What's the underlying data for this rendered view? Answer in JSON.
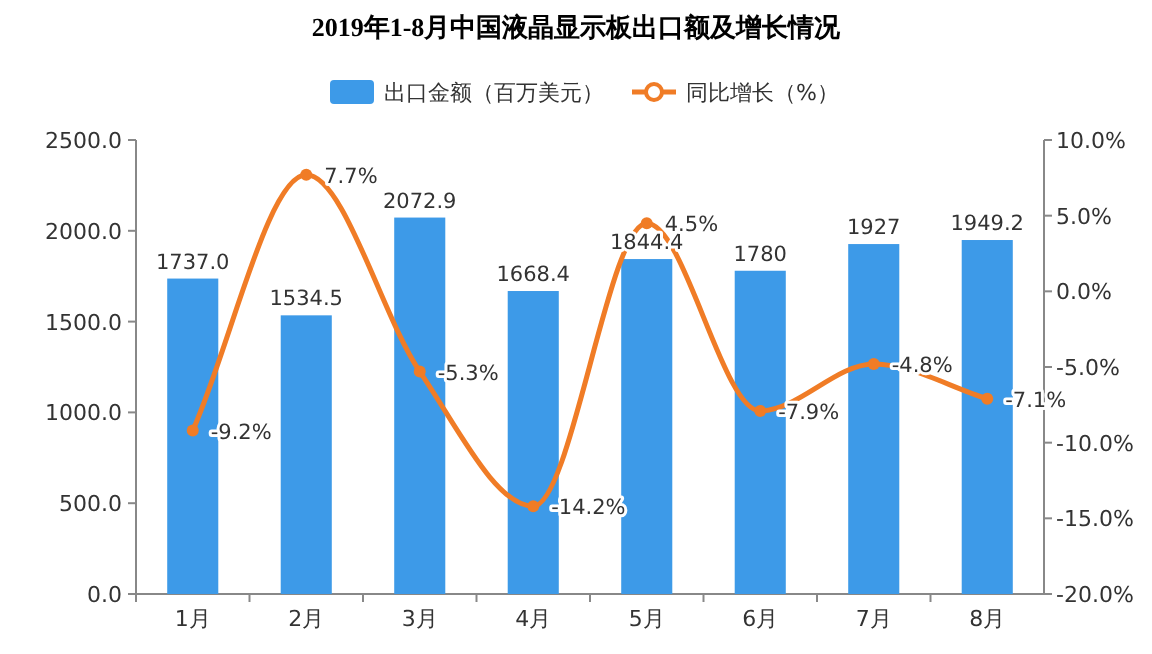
{
  "chart_data": {
    "type": "bar",
    "title": "2019年1-8月中国液晶显示板出口额及增长情况",
    "categories": [
      "1月",
      "2月",
      "3月",
      "4月",
      "5月",
      "6月",
      "7月",
      "8月"
    ],
    "series": [
      {
        "name": "出口金额（百万美元）",
        "color": "#3d9ae8",
        "values": [
          1737.0,
          1534.5,
          2072.9,
          1668.4,
          1844.4,
          1780,
          1927,
          1949.2
        ],
        "value_labels": [
          "1737.0",
          "1534.5",
          "2072.9",
          "1668.4",
          "1844.4",
          "1780",
          "1927",
          "1949.2"
        ]
      },
      {
        "name": "同比增长（%）",
        "type": "line",
        "axis": "y2",
        "color": "#f07c26",
        "marker": "circle",
        "values": [
          -9.2,
          7.7,
          -5.3,
          -14.2,
          4.5,
          -7.9,
          -4.8,
          -7.1
        ],
        "value_labels": [
          "-9.2%",
          "7.7%",
          "-5.3%",
          "-14.2%",
          "4.5%",
          "-7.9%",
          "-4.8%",
          "-7.1%"
        ]
      }
    ],
    "ylim": [
      0,
      2500
    ],
    "yticks": [
      {
        "value": 0,
        "label": "0.0"
      },
      {
        "value": 500,
        "label": "500.0"
      },
      {
        "value": 1000,
        "label": "1000.0"
      },
      {
        "value": 1500,
        "label": "1500.0"
      },
      {
        "value": 2000,
        "label": "2000.0"
      },
      {
        "value": 2500,
        "label": "2500.0"
      }
    ],
    "y2lim": [
      -20,
      10
    ],
    "y2ticks": [
      {
        "value": -20,
        "label": "-20.0%"
      },
      {
        "value": -15,
        "label": "-15.0%"
      },
      {
        "value": -10,
        "label": "-10.0%"
      },
      {
        "value": -5,
        "label": "-5.0%"
      },
      {
        "value": 0,
        "label": "0.0%"
      },
      {
        "value": 5,
        "label": "5.0%"
      },
      {
        "value": 10,
        "label": "10.0%"
      }
    ],
    "legend": "top",
    "grid": false
  }
}
